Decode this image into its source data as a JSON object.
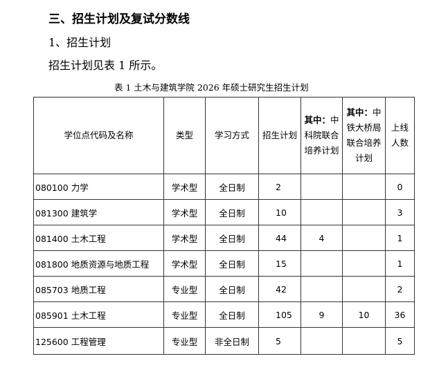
{
  "heading": "三、招生计划及复试分数线",
  "subheading": "1、招生计划",
  "paragraph": "招生计划见表 1 所示。",
  "caption": "表 1 土木与建筑学院 2026 年硕士研究生招生计划",
  "table": {
    "headers": {
      "name": "学位点代码及名称",
      "type": "类型",
      "mode": "学习方式",
      "plan": "招生计划",
      "cas_bold": "其中：",
      "cas": "中科院联合培养计划",
      "crbc_bold": "其中：",
      "crbc": "中铁大桥局联合培养计划",
      "line": "上线人数"
    },
    "rows": [
      {
        "name": "080100 力学",
        "type": "学术型",
        "mode": "全日制",
        "plan": "2",
        "cas": "",
        "crbc": "",
        "line": "0"
      },
      {
        "name": "081300 建筑学",
        "type": "学术型",
        "mode": "全日制",
        "plan": "10",
        "cas": "",
        "crbc": "",
        "line": "3"
      },
      {
        "name": "081400 土木工程",
        "type": "学术型",
        "mode": "全日制",
        "plan": "44",
        "cas": "4",
        "crbc": "",
        "line": "1"
      },
      {
        "name": "081800 地质资源与地质工程",
        "type": "学术型",
        "mode": "全日制",
        "plan": "15",
        "cas": "",
        "crbc": "",
        "line": "1"
      },
      {
        "name": "085703 地质工程",
        "type": "专业型",
        "mode": "全日制",
        "plan": "42",
        "cas": "",
        "crbc": "",
        "line": "2"
      },
      {
        "name": "085901 土木工程",
        "type": "专业型",
        "mode": "全日制",
        "plan": "105",
        "cas": "9",
        "crbc": "10",
        "line": "36"
      },
      {
        "name": "125600  工程管理",
        "type": "专业型",
        "mode": "非全日制",
        "plan": "5",
        "cas": "",
        "crbc": "",
        "line": "5"
      }
    ]
  }
}
